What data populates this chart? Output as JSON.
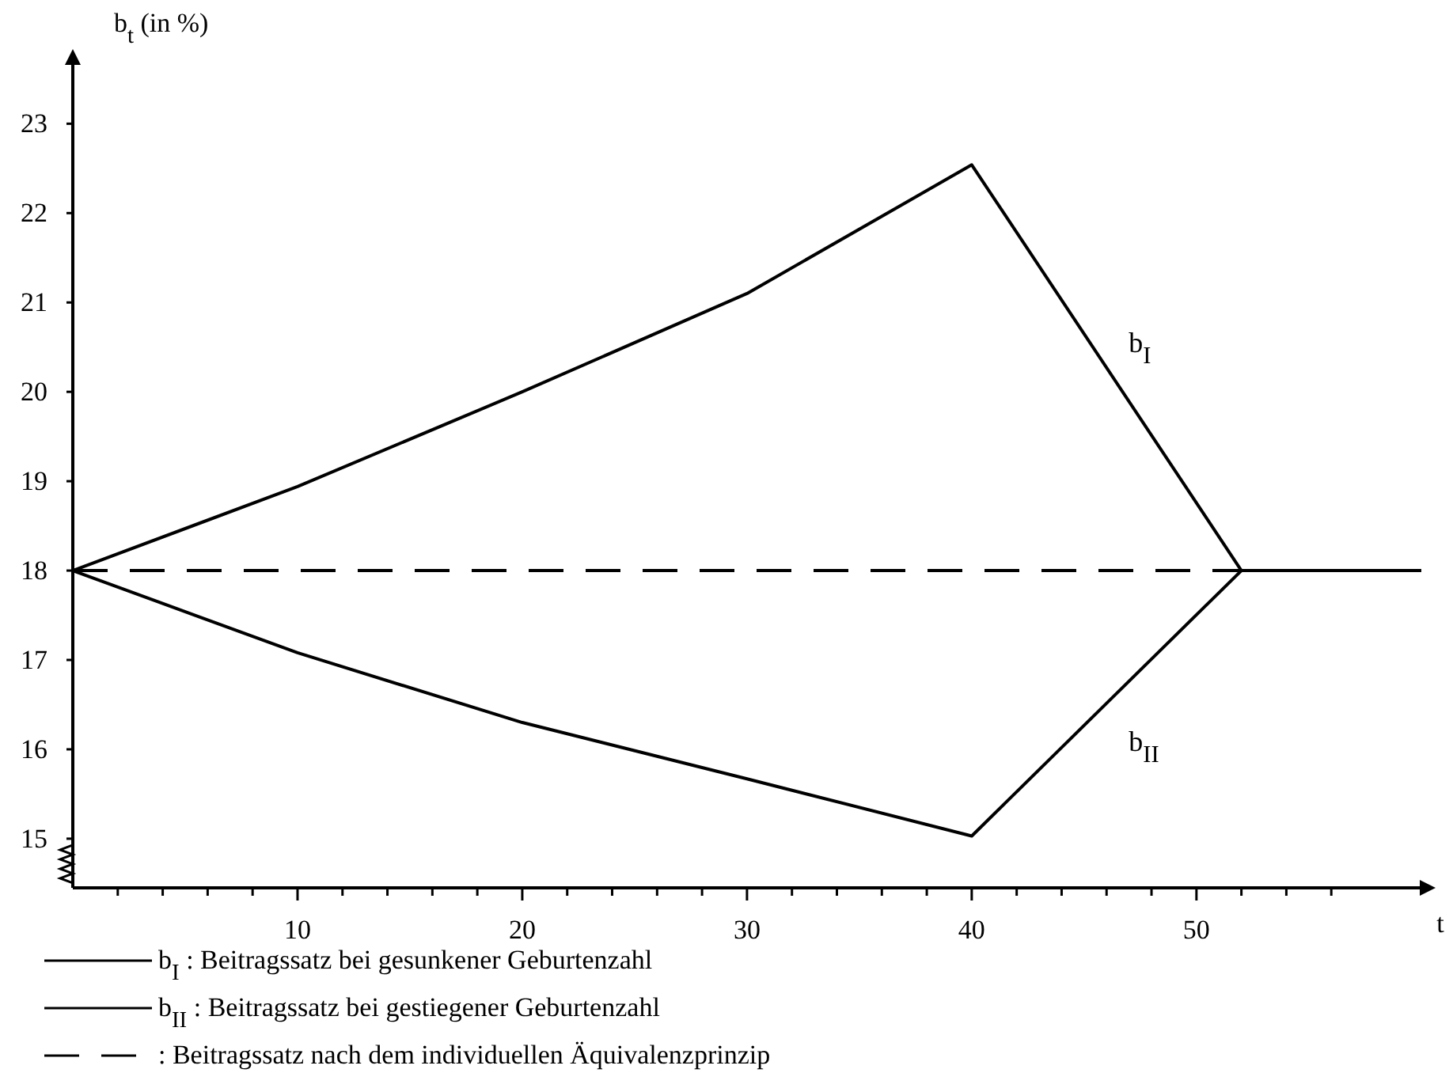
{
  "chart_data": {
    "type": "line",
    "xlabel": "t",
    "ylabel": "b$_{t}$ (in %)",
    "xlim": [
      0,
      60.5
    ],
    "ylim": [
      14.45,
      23.8
    ],
    "xticks": [
      {
        "value": 2,
        "label": null
      },
      {
        "value": 4,
        "label": null
      },
      {
        "value": 6,
        "label": null
      },
      {
        "value": 8,
        "label": null
      },
      10,
      {
        "value": 12,
        "label": null
      },
      {
        "value": 14,
        "label": null
      },
      {
        "value": 16,
        "label": null
      },
      {
        "value": 18,
        "label": null
      },
      20,
      {
        "value": 22,
        "label": null
      },
      {
        "value": 24,
        "label": null
      },
      {
        "value": 26,
        "label": null
      },
      {
        "value": 28,
        "label": null
      },
      30,
      {
        "value": 32,
        "label": null
      },
      {
        "value": 34,
        "label": null
      },
      {
        "value": 36,
        "label": null
      },
      {
        "value": 38,
        "label": null
      },
      40,
      {
        "value": 42,
        "label": null
      },
      {
        "value": 44,
        "label": null
      },
      {
        "value": 46,
        "label": null
      },
      {
        "value": 48,
        "label": null
      },
      50,
      {
        "value": 52,
        "label": null
      },
      {
        "value": 54,
        "label": null
      },
      {
        "value": 56,
        "label": null
      }
    ],
    "yticks": [
      15,
      16,
      17,
      18,
      19,
      20,
      21,
      22,
      23
    ],
    "grid": false,
    "legend": "bottom",
    "marker": "none",
    "series": [
      {
        "name": "b$_{I}$ : Beitragssatz bei gesunkener Geburtenzahl",
        "color": "#000000",
        "line_style": "solid",
        "x": [
          0,
          10,
          20,
          30,
          40,
          52,
          60
        ],
        "values": [
          18,
          18.94,
          20.0,
          21.1,
          22.54,
          18,
          18
        ]
      },
      {
        "name": "b$_{II}$ : Beitragssatz bei gestiegener Geburtenzahl",
        "color": "#000000",
        "line_style": "solid",
        "x": [
          0,
          10,
          20,
          30,
          40,
          52,
          60
        ],
        "values": [
          18,
          17.08,
          16.3,
          15.67,
          15.03,
          18,
          18
        ]
      },
      {
        "name": ": Beitragssatz nach dem individuellen Äquivalenzprinzip",
        "color": "#000000",
        "line_style": "dashed",
        "x": [
          0,
          52
        ],
        "values": [
          18,
          18
        ]
      }
    ],
    "annotations": [
      "b$_{I}$",
      "b$_{II}$"
    ]
  }
}
